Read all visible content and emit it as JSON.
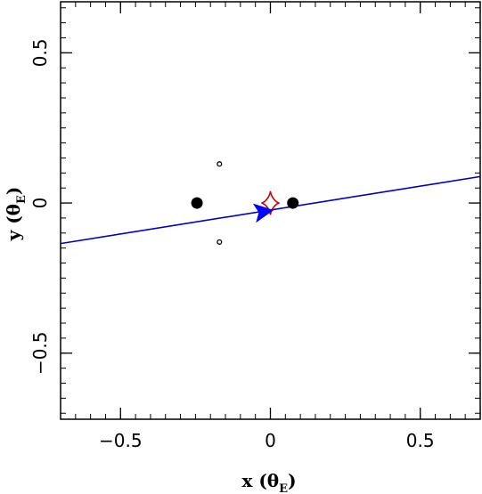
{
  "chart_data": {
    "type": "scatter",
    "xlabel": "x (θ_E)",
    "xlabel_main": "x (θ",
    "xlabel_sub": "E",
    "xlabel_close": ")",
    "ylabel": "y (θ_E)",
    "ylabel_main": "y (θ",
    "ylabel_sub": "E",
    "ylabel_close": ")",
    "xlim": [
      -0.7,
      0.7
    ],
    "ylim": [
      -0.72,
      0.67
    ],
    "x_ticks": [
      -0.5,
      0,
      0.5
    ],
    "x_tick_labels": [
      "−0.5",
      "0",
      "0.5"
    ],
    "y_ticks": [
      -0.5,
      0,
      0.5
    ],
    "y_tick_labels": [
      "−0.5",
      "0",
      "0.5"
    ],
    "minor_tick_step": 0.05,
    "grid": false,
    "lens_points": [
      {
        "x": -0.245,
        "y": 0.0,
        "size": "large",
        "filled": true
      },
      {
        "x": 0.075,
        "y": 0.0,
        "size": "large",
        "filled": true
      },
      {
        "x": -0.17,
        "y": 0.13,
        "size": "small",
        "filled": false
      },
      {
        "x": -0.17,
        "y": -0.13,
        "size": "small",
        "filled": false
      }
    ],
    "source_trajectory": {
      "x": [
        -0.7,
        0.7
      ],
      "y": [
        -0.135,
        0.088
      ],
      "color": "#0000cc"
    },
    "trajectory_arrow": {
      "x": -0.03,
      "y": -0.03,
      "direction": "left",
      "color": "#0000ff"
    },
    "caustic": {
      "center_x": 0.0,
      "center_y": 0.0,
      "half_width": 0.03,
      "half_height": 0.04,
      "color": "#cc0000"
    }
  }
}
